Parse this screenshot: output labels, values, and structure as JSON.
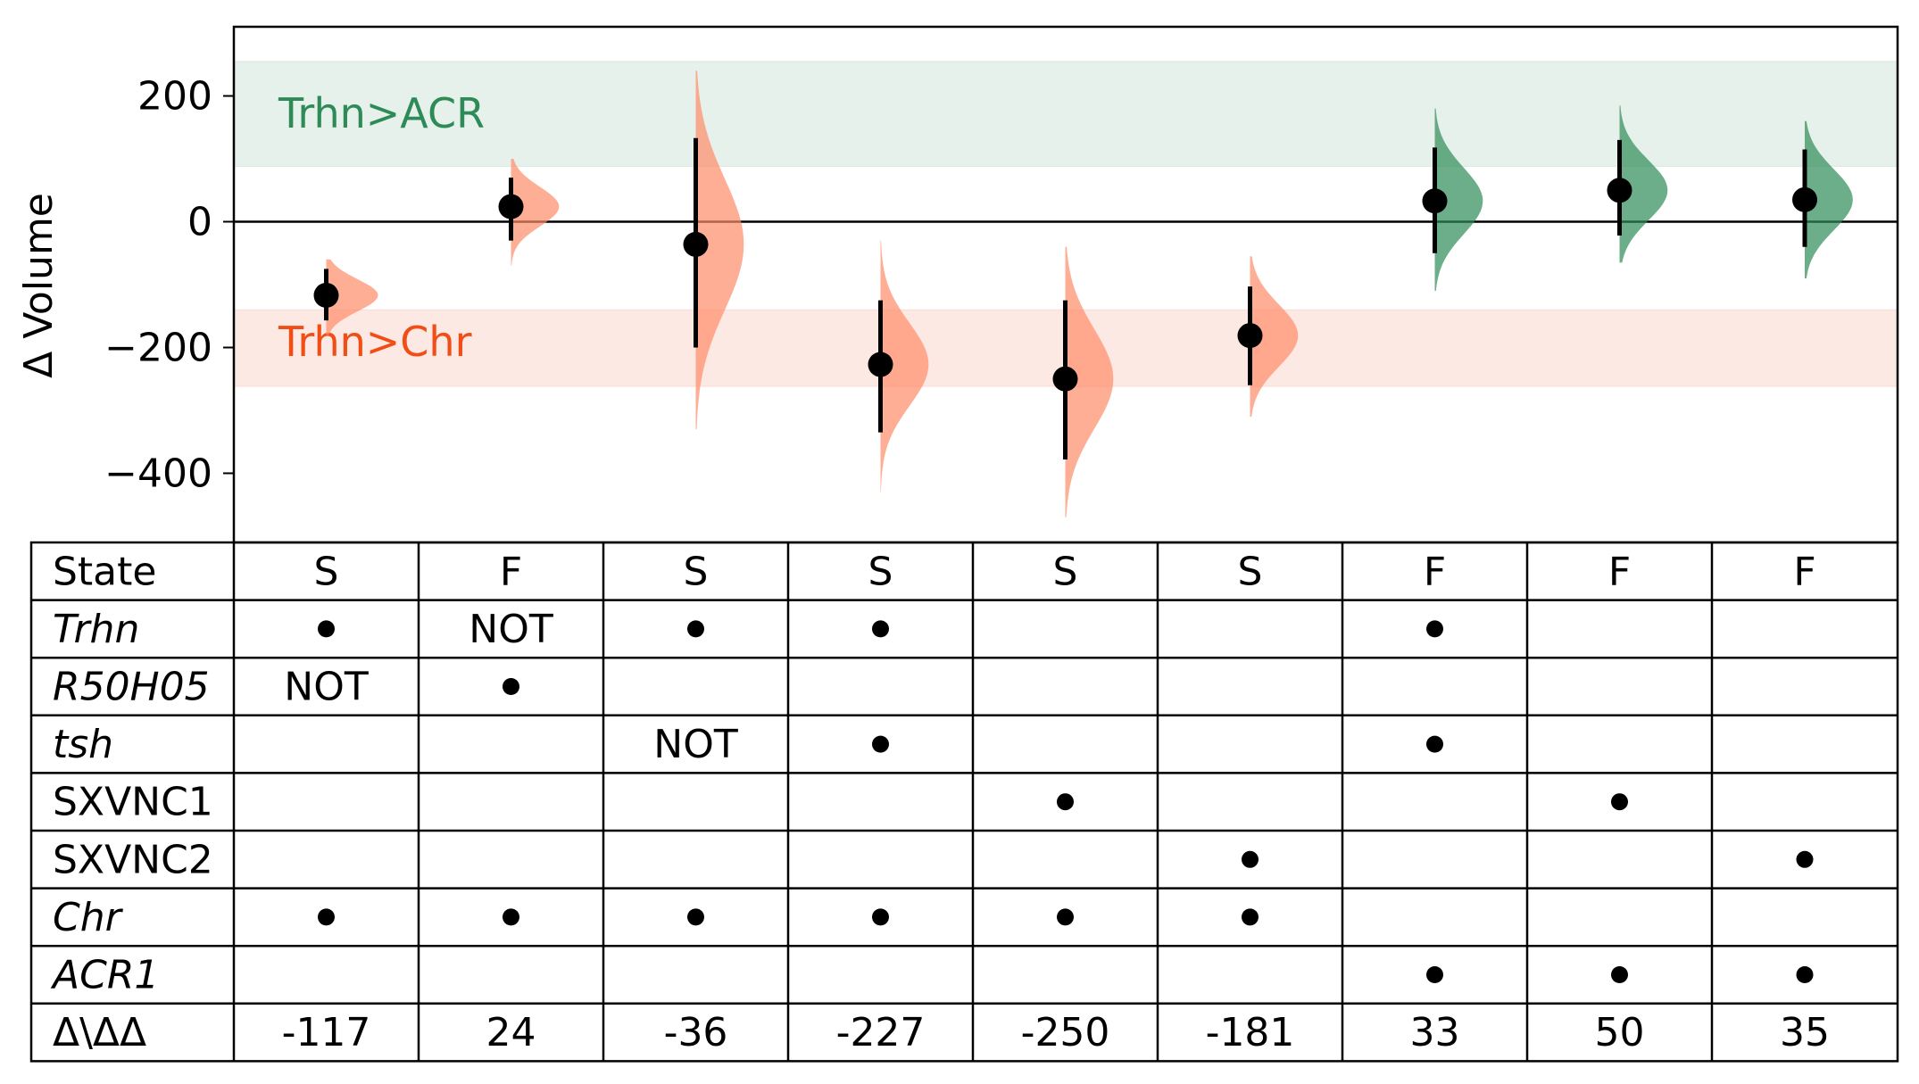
{
  "chart_data": {
    "type": "scatter",
    "ylabel": "Δ Volume",
    "ylim": [
      -510,
      310
    ],
    "yticks": [
      200,
      0,
      -200,
      -400
    ],
    "ytick_labels": [
      "200",
      "0",
      "−200",
      "−400"
    ],
    "bands": [
      {
        "label": "Trhn>ACR",
        "y_from": 88,
        "y_to": 255,
        "color": "#2e8b57"
      },
      {
        "label": "Trhn>Chr",
        "y_from": -262,
        "y_to": -140,
        "color": "#f04e16"
      }
    ],
    "points": [
      {
        "value": -117,
        "err_low": -157,
        "err_high": -75,
        "dist_min": -180,
        "dist_max": -60,
        "dist_width": 0.28,
        "color": "#ff8c69"
      },
      {
        "value": 24,
        "err_low": -30,
        "err_high": 70,
        "dist_min": -70,
        "dist_max": 100,
        "dist_width": 0.26,
        "color": "#ff8c69"
      },
      {
        "value": -36,
        "err_low": -200,
        "err_high": 133,
        "dist_min": -330,
        "dist_max": 240,
        "dist_width": 0.26,
        "color": "#ff8c69"
      },
      {
        "value": -227,
        "err_low": -335,
        "err_high": -125,
        "dist_min": -430,
        "dist_max": -30,
        "dist_width": 0.26,
        "color": "#ff8c69"
      },
      {
        "value": -250,
        "err_low": -378,
        "err_high": -125,
        "dist_min": -470,
        "dist_max": -40,
        "dist_width": 0.26,
        "color": "#ff8c69"
      },
      {
        "value": -181,
        "err_low": -260,
        "err_high": -103,
        "dist_min": -310,
        "dist_max": -55,
        "dist_width": 0.26,
        "color": "#ff8c69"
      },
      {
        "value": 33,
        "err_low": -50,
        "err_high": 118,
        "dist_min": -110,
        "dist_max": 180,
        "dist_width": 0.26,
        "color": "#2e8b57"
      },
      {
        "value": 50,
        "err_low": -22,
        "err_high": 130,
        "dist_min": -65,
        "dist_max": 185,
        "dist_width": 0.26,
        "color": "#2e8b57"
      },
      {
        "value": 35,
        "err_low": -40,
        "err_high": 115,
        "dist_min": -90,
        "dist_max": 160,
        "dist_width": 0.26,
        "color": "#2e8b57"
      }
    ],
    "table": {
      "rows": [
        {
          "label": "State",
          "italic": false,
          "cells": [
            "S",
            "F",
            "S",
            "S",
            "S",
            "S",
            "F",
            "F",
            "F"
          ]
        },
        {
          "label": "Trhn",
          "italic": true,
          "cells": [
            "•",
            "NOT",
            "•",
            "•",
            "",
            "",
            "•",
            "",
            ""
          ]
        },
        {
          "label": "R50H05",
          "italic": true,
          "cells": [
            "NOT",
            "•",
            "",
            "",
            "",
            "",
            "",
            "",
            ""
          ]
        },
        {
          "label": "tsh",
          "italic": true,
          "cells": [
            "",
            "",
            "NOT",
            "•",
            "",
            "",
            "•",
            "",
            ""
          ]
        },
        {
          "label": "SXVNC1",
          "italic": false,
          "cells": [
            "",
            "",
            "",
            "",
            "•",
            "",
            "",
            "•",
            ""
          ]
        },
        {
          "label": "SXVNC2",
          "italic": false,
          "cells": [
            "",
            "",
            "",
            "",
            "",
            "•",
            "",
            "",
            "•"
          ]
        },
        {
          "label": "Chr",
          "italic": true,
          "cells": [
            "•",
            "•",
            "•",
            "•",
            "•",
            "•",
            "",
            "",
            ""
          ]
        },
        {
          "label": "ACR1",
          "italic": true,
          "cells": [
            "",
            "",
            "",
            "",
            "",
            "",
            "•",
            "•",
            "•"
          ]
        },
        {
          "label": "Δ\\ΔΔ",
          "italic": false,
          "cells": [
            "-117",
            "24",
            "-36",
            "-227",
            "-250",
            "-181",
            "33",
            "50",
            "35"
          ]
        }
      ]
    }
  }
}
